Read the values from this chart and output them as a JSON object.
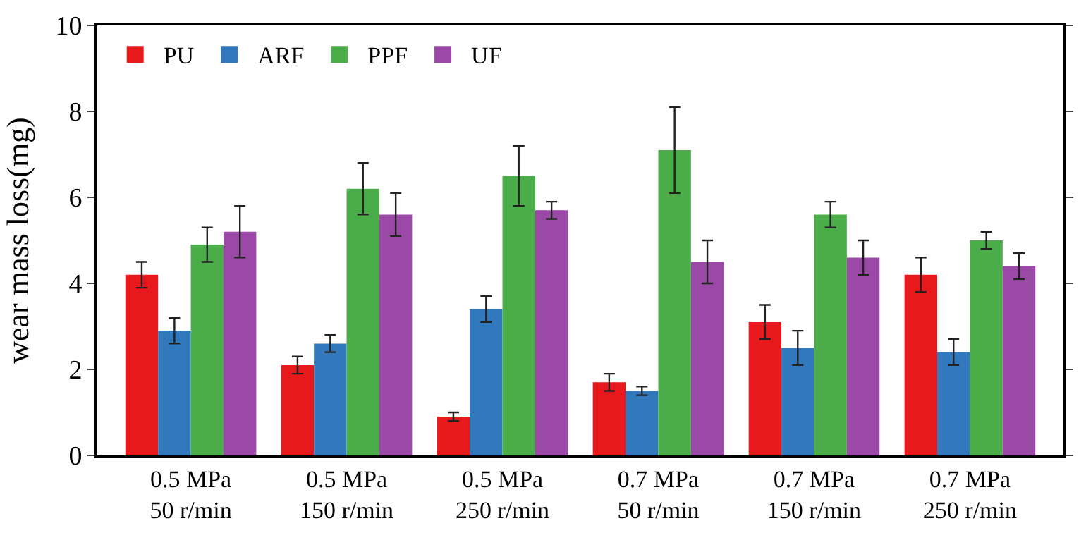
{
  "chart_data": {
    "type": "bar",
    "ylabel": "wear mass loss(mg)",
    "categories": [
      "0.5 MPa\n50 r/min",
      "0.5 MPa\n150 r/min",
      "0.5 MPa\n250 r/min",
      "0.7 MPa\n50 r/min",
      "0.7 MPa\n150 r/min",
      "0.7 MPa\n250 r/min"
    ],
    "series": [
      {
        "name": "PU",
        "color": "#e8191c",
        "values": [
          4.2,
          2.1,
          0.9,
          1.7,
          3.1,
          4.2
        ],
        "errors": [
          0.3,
          0.2,
          0.1,
          0.2,
          0.4,
          0.4
        ]
      },
      {
        "name": "ARF",
        "color": "#3278bd",
        "values": [
          2.9,
          2.6,
          3.4,
          1.5,
          2.5,
          2.4
        ],
        "errors": [
          0.3,
          0.2,
          0.3,
          0.1,
          0.4,
          0.3
        ]
      },
      {
        "name": "PPF",
        "color": "#4bad4a",
        "values": [
          4.9,
          6.2,
          6.5,
          7.1,
          5.6,
          5.0
        ],
        "errors": [
          0.4,
          0.6,
          0.7,
          1.0,
          0.3,
          0.2
        ]
      },
      {
        "name": "UF",
        "color": "#9a4aa6",
        "values": [
          5.2,
          5.6,
          5.7,
          4.5,
          4.6,
          4.4
        ],
        "errors": [
          0.6,
          0.5,
          0.2,
          0.5,
          0.4,
          0.3
        ]
      }
    ],
    "ylim": [
      0,
      10
    ],
    "yticks": [
      0,
      2,
      4,
      6,
      8,
      10
    ],
    "legend": "top left"
  }
}
